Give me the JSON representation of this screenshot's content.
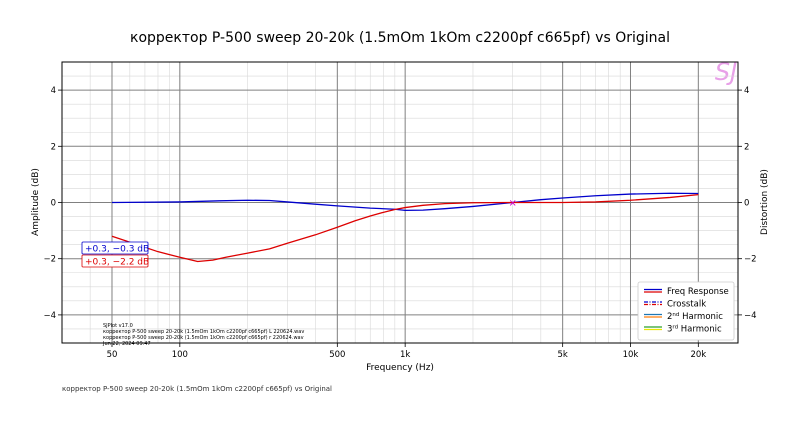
{
  "chart_data": {
    "type": "line",
    "title": "корректор P-500 sweep 20-20k (1.5mOm 1kOm c2200pf c665pf) vs Original",
    "xlabel": "Frequency (Hz)",
    "ylabel": "Amplitude (dB)",
    "ylabel_right": "Distortion (dB)",
    "x_scale": "log",
    "xlim": [
      30,
      30000
    ],
    "ylim": [
      -5,
      5
    ],
    "xticks": [
      50,
      100,
      500,
      1000,
      5000,
      10000,
      20000
    ],
    "xtick_labels": [
      "50",
      "100",
      "500",
      "1k",
      "5k",
      "10k",
      "20k"
    ],
    "yticks": [
      -4,
      -2,
      0,
      2,
      4
    ],
    "ytick_labels": [
      "−4",
      "−2",
      "0",
      "2",
      "4"
    ],
    "grid": true,
    "legend_position": "bottom-right",
    "legend": [
      {
        "label": "Freq Response",
        "colors": [
          "#0000cc",
          "#dd0000"
        ],
        "style": "solid"
      },
      {
        "label": "Crosstalk",
        "colors": [
          "#0000cc",
          "#dd0000"
        ],
        "style": "dashdot"
      },
      {
        "label_main": "2",
        "label_sup": "nd",
        "label_rest": " Harmonic",
        "colors": [
          "#1f77b4",
          "#ff7f0e"
        ],
        "style": "solid"
      },
      {
        "label_main": "3",
        "label_sup": "rd",
        "label_rest": " Harmonic",
        "colors": [
          "#2ca02c",
          "#e8e800"
        ],
        "style": "solid"
      }
    ],
    "series": [
      {
        "color": "#0000cc",
        "x": [
          50,
          100,
          150,
          200,
          250,
          300,
          400,
          500,
          700,
          900,
          1000,
          1200,
          1500,
          2000,
          3000,
          4000,
          5000,
          7000,
          10000,
          15000,
          20000
        ],
        "y": [
          0.0,
          0.02,
          0.06,
          0.08,
          0.07,
          0.02,
          -0.06,
          -0.12,
          -0.2,
          -0.24,
          -0.28,
          -0.27,
          -0.22,
          -0.14,
          0.0,
          0.1,
          0.16,
          0.24,
          0.3,
          0.33,
          0.32
        ]
      },
      {
        "color": "#dd0000",
        "x": [
          50,
          80,
          100,
          120,
          140,
          160,
          200,
          250,
          300,
          400,
          500,
          600,
          700,
          800,
          900,
          1000,
          1200,
          1500,
          2000,
          3000,
          5000,
          7000,
          10000,
          15000,
          20000
        ],
        "y": [
          -1.2,
          -1.75,
          -1.95,
          -2.1,
          -2.05,
          -1.95,
          -1.8,
          -1.65,
          -1.45,
          -1.15,
          -0.88,
          -0.65,
          -0.48,
          -0.35,
          -0.25,
          -0.18,
          -0.1,
          -0.04,
          -0.01,
          0.0,
          0.0,
          0.02,
          0.08,
          0.18,
          0.28
        ]
      }
    ],
    "annotations": [
      {
        "text": "+0.3, −0.3 dB",
        "color": "#0000cc"
      },
      {
        "text": "+0.3, −2.2 dB",
        "color": "#dd0000"
      }
    ],
    "marker": {
      "x": 3000,
      "y": 0,
      "symbol": "×",
      "color": "#cc00cc"
    },
    "info_lines": [
      "SJPlot v17.0",
      "корректор P-500 sweep 20-20k (1.5mOm 1kOm c2200pf c665pf) L 220624.wav",
      "корректор P-500 sweep 20-20k (1.5mOm 1kOm c2200pf c665pf) r 220624.wav",
      "Jun 22, 2024 09:47"
    ],
    "watermark": "SJ",
    "footer": "корректор P-500 sweep 20-20k (1.5mOm 1kOm c2200pf c665pf) vs Original"
  }
}
